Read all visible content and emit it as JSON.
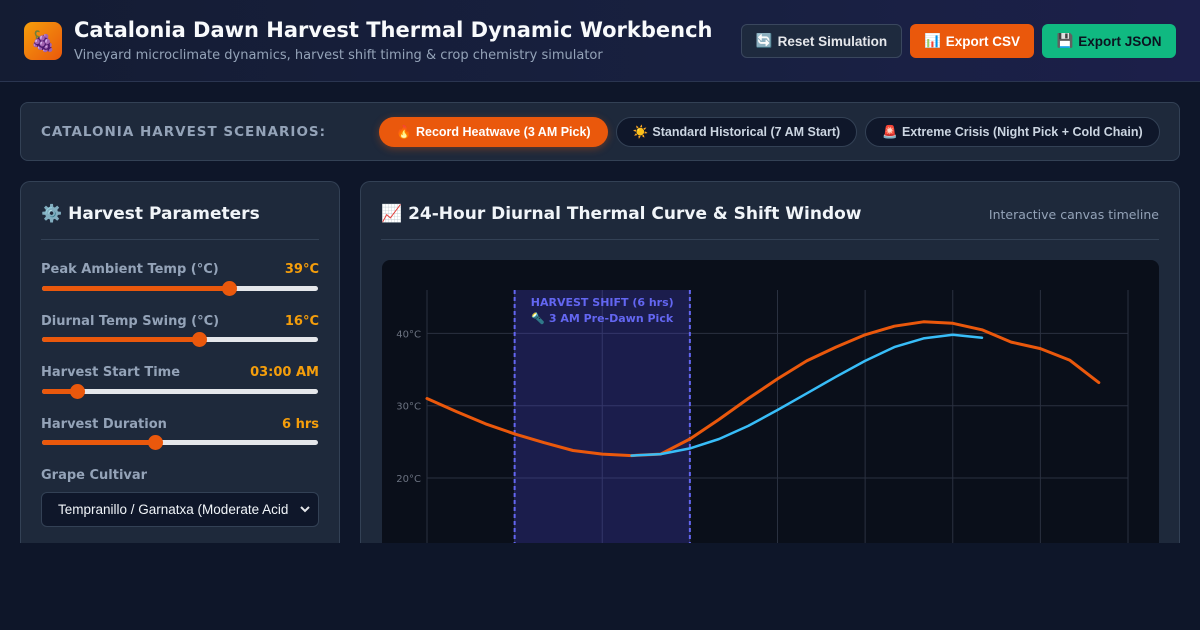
{
  "header": {
    "logo_icon": "🍇",
    "title": "Catalonia Dawn Harvest Thermal Dynamic Workbench",
    "subtitle": "Vineyard microclimate dynamics, harvest shift timing & crop chemistry simulator",
    "buttons": {
      "reset": {
        "icon": "🔄",
        "label": "Reset Simulation"
      },
      "csv": {
        "icon": "📊",
        "label": "Export CSV"
      },
      "json": {
        "icon": "💾",
        "label": "Export JSON"
      }
    }
  },
  "scenarios": {
    "label": "CATALONIA HARVEST SCENARIOS:",
    "items": [
      {
        "icon": "🔥",
        "label": "Record Heatwave (3 AM Pick)",
        "active": true
      },
      {
        "icon": "☀️",
        "label": "Standard Historical (7 AM Start)",
        "active": false
      },
      {
        "icon": "🚨",
        "label": "Extreme Crisis (Night Pick + Cold Chain)",
        "active": false
      }
    ]
  },
  "parameters": {
    "title_icon": "⚙️",
    "title": "Harvest Parameters",
    "sliders": [
      {
        "label": "Peak Ambient Temp (°C)",
        "value": "39°C",
        "fraction": 0.68
      },
      {
        "label": "Diurnal Temp Swing (°C)",
        "value": "16°C",
        "fraction": 0.57
      },
      {
        "label": "Harvest Start Time",
        "value": "03:00 AM",
        "fraction": 0.13
      },
      {
        "label": "Harvest Duration",
        "value": "6 hrs",
        "fraction": 0.41
      }
    ],
    "cultivar": {
      "label": "Grape Cultivar",
      "selected": "Tempranillo / Garnatxa (Moderate Acid"
    }
  },
  "chart_panel": {
    "title_icon": "📈",
    "title": "24-Hour Diurnal Thermal Curve & Shift Window",
    "meta": "Interactive canvas timeline"
  },
  "chart_data": {
    "type": "line",
    "y_tick_labels": [
      "40°C",
      "30°C",
      "20°C"
    ],
    "y_ticks": [
      40,
      30,
      20
    ],
    "ylim": [
      7,
      46
    ],
    "xlim": [
      0,
      24
    ],
    "grid": true,
    "x_gridlines": [
      0,
      3,
      6,
      9,
      12,
      15,
      18,
      21,
      24
    ],
    "shift_window": {
      "start": 3,
      "end": 9,
      "label": "HARVEST SHIFT (6 hrs)",
      "sublabel": "🔦 3 AM Pre-Dawn Pick"
    },
    "series": [
      {
        "color": "#ea580c",
        "x": [
          0,
          1,
          2,
          3,
          4,
          5,
          6,
          7,
          8,
          9,
          10,
          11,
          12,
          13,
          14,
          15,
          16,
          17,
          18,
          19,
          20,
          21,
          22,
          23
        ],
        "values": [
          31,
          29.2,
          27.5,
          26.1,
          24.9,
          23.8,
          23.3,
          23.1,
          23.3,
          25.4,
          28.1,
          31.0,
          33.7,
          36.2,
          38.1,
          39.8,
          41.0,
          41.6,
          41.4,
          40.5,
          38.8,
          37.9,
          36.3,
          33.2
        ]
      },
      {
        "color": "#38bdf8",
        "x": [
          7,
          8,
          9,
          10,
          11,
          12,
          13,
          14,
          15,
          16,
          17,
          18,
          19
        ],
        "values": [
          23.1,
          23.3,
          24.1,
          25.4,
          27.2,
          29.4,
          31.7,
          34.0,
          36.2,
          38.1,
          39.3,
          39.8,
          39.4
        ]
      }
    ]
  }
}
